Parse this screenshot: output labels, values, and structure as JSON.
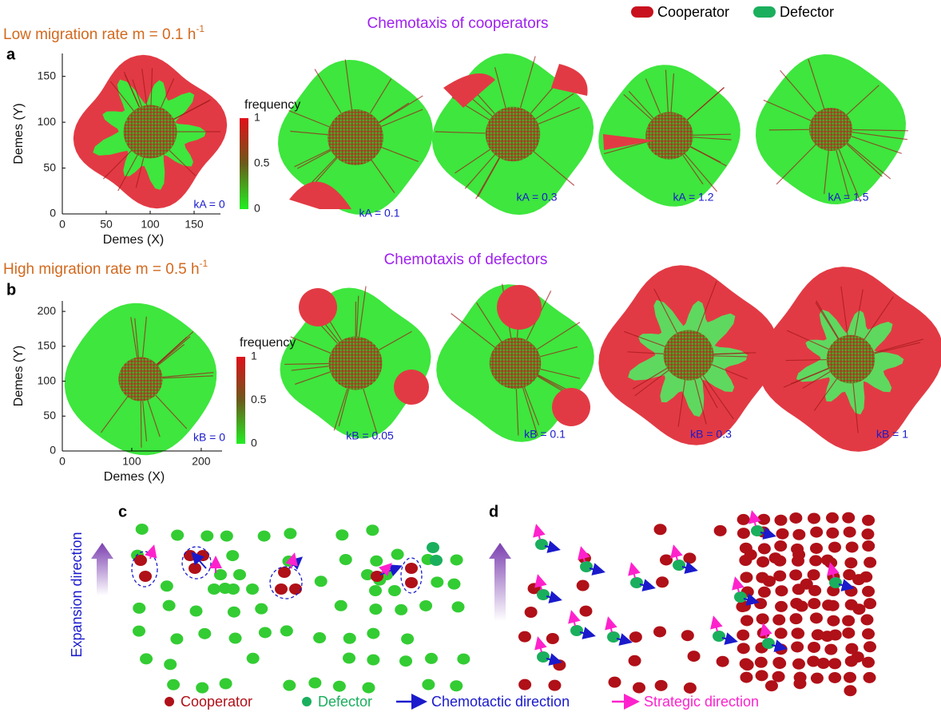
{
  "legend_top": [
    {
      "label": "Cooperator",
      "color": "#c8101e"
    },
    {
      "label": "Defector",
      "color": "#1aaf5d"
    }
  ],
  "panel_a": {
    "heading": "Low migration rate m = 0.1 h",
    "heading_sup": "-1",
    "letter": "a",
    "title": "Chemotaxis of cooperators",
    "axis": {
      "xlabel": "Demes  (X)",
      "ylabel": "Demes (Y)",
      "xlim": [
        0,
        180
      ],
      "ylim": [
        0,
        175
      ],
      "xticks": [
        0,
        50,
        100,
        150
      ],
      "yticks": [
        0,
        50,
        100,
        150
      ]
    },
    "colorbar": {
      "label": "frequency",
      "lim": [
        0,
        1
      ],
      "ticks": [
        0,
        0.5,
        1
      ]
    },
    "colonies": [
      "kA = 0",
      "kA = 0.1",
      "kA = 0.3",
      "kA = 1.2",
      "kA = 1.5"
    ]
  },
  "panel_b": {
    "heading": "High migration rate m = 0.5 h",
    "heading_sup": "-1",
    "letter": "b",
    "title": "Chemotaxis of defectors",
    "axis": {
      "xlabel": "Demes  (X)",
      "ylabel": "Demes (Y)",
      "xlim": [
        0,
        230
      ],
      "ylim": [
        0,
        215
      ],
      "xticks": [
        0,
        100,
        200
      ],
      "yticks": [
        0,
        50,
        100,
        150,
        200
      ]
    },
    "colorbar": {
      "label": "frequency",
      "lim": [
        0,
        1
      ],
      "ticks": [
        0,
        0.5,
        1
      ]
    },
    "colonies": [
      "kB = 0",
      "kB = 0.05",
      "kB = 0.1",
      "kB = 0.3",
      "kB = 1"
    ]
  },
  "panel_c": {
    "letter": "c",
    "arrow_label": "Expansion direction"
  },
  "panel_d": {
    "letter": "d"
  },
  "legend_bottom": [
    {
      "label": "Cooperator",
      "color": "#b01018"
    },
    {
      "label": "Defector",
      "color": "#1aaf5d"
    },
    {
      "label": "Chemotactic direction",
      "color": "#1a1acc"
    },
    {
      "label": "Strategic direction",
      "color": "#ff22cc"
    }
  ]
}
